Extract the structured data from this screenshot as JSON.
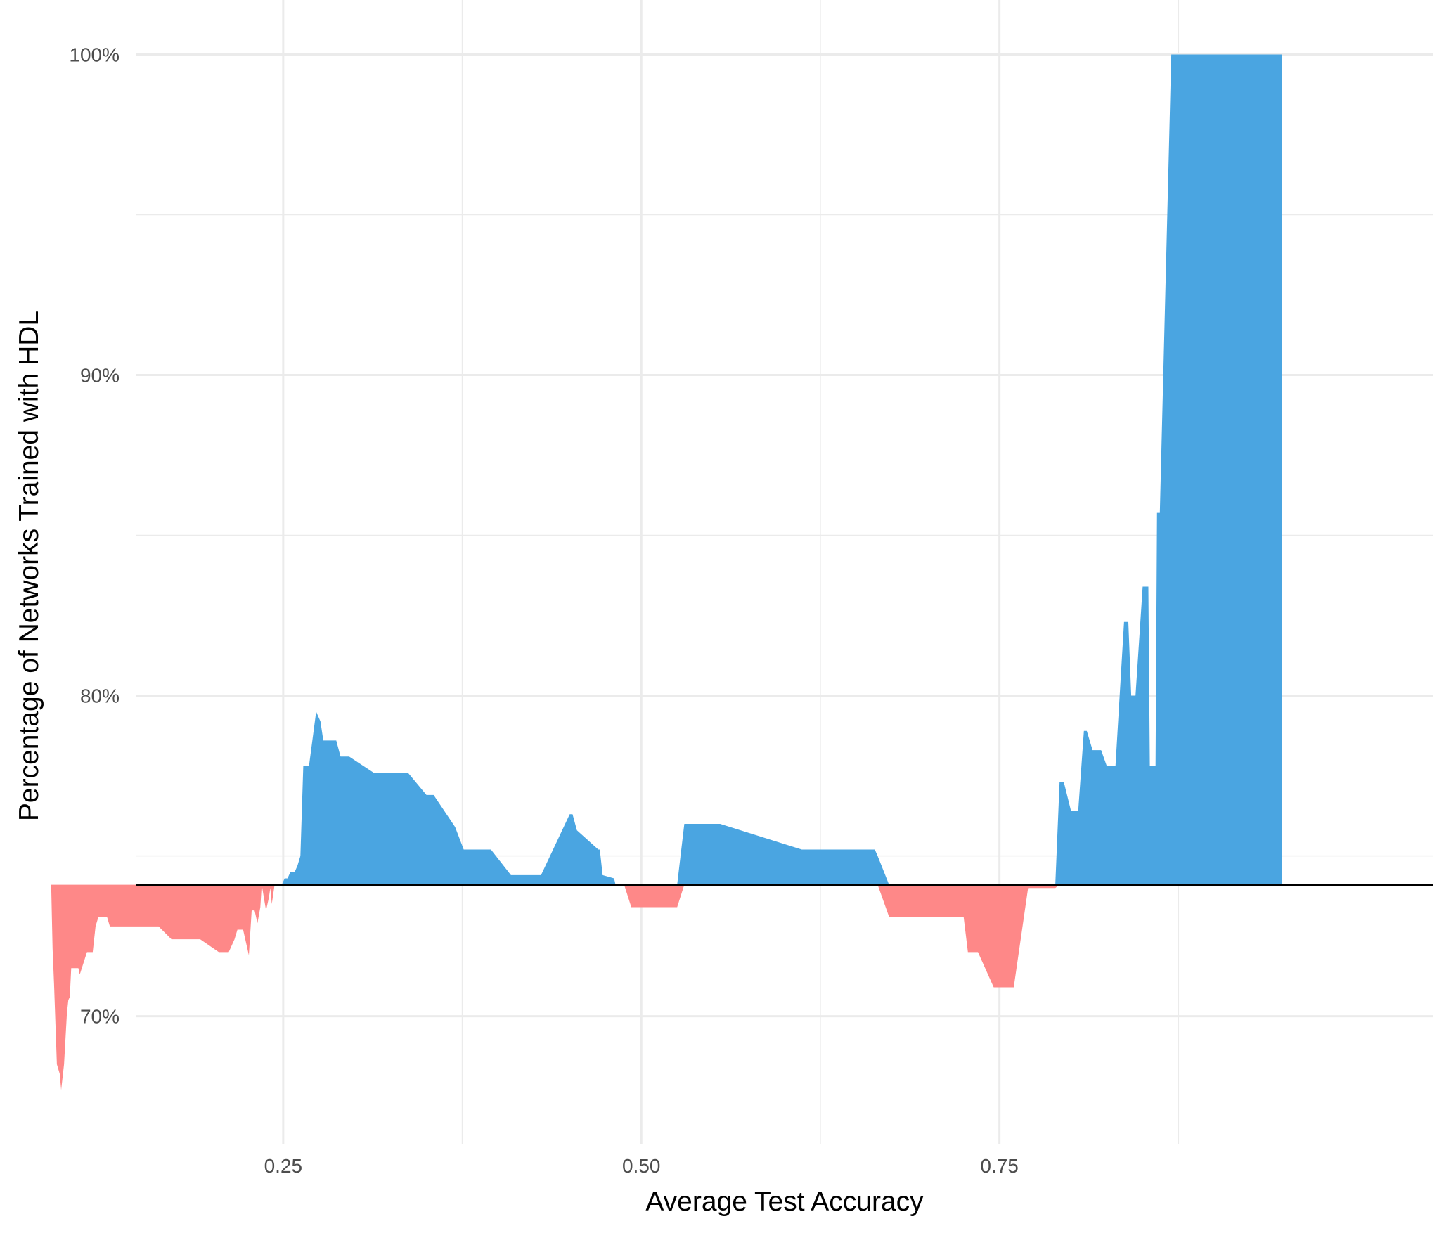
{
  "chart_data": {
    "type": "area",
    "xlabel": "Average Test Accuracy",
    "ylabel": "Percentage of  Networks Trained with HDL",
    "x_ticks": [
      {
        "value": 0.25,
        "label": "0.25"
      },
      {
        "value": 0.5,
        "label": "0.50"
      },
      {
        "value": 0.75,
        "label": "0.75"
      }
    ],
    "y_ticks": [
      {
        "value": 70,
        "label": "70%"
      },
      {
        "value": 80,
        "label": "80%"
      },
      {
        "value": 90,
        "label": "90%"
      },
      {
        "value": 100,
        "label": "100%"
      }
    ],
    "xlim": [
      0.147,
      1.053
    ],
    "ylim": [
      66.0,
      101.7
    ],
    "grid": true,
    "baseline": 74.1,
    "colors": {
      "above": "#4aa5e1",
      "below": "#fe8888",
      "baseline": "#000000",
      "grid": "#ebebeb"
    },
    "x": [
      0.088,
      0.089,
      0.09,
      0.092,
      0.094,
      0.095,
      0.097,
      0.099,
      0.1,
      0.101,
      0.102,
      0.106,
      0.107,
      0.108,
      0.113,
      0.117,
      0.119,
      0.121,
      0.123,
      0.127,
      0.129,
      0.137,
      0.15,
      0.163,
      0.172,
      0.183,
      0.186,
      0.192,
      0.205,
      0.212,
      0.216,
      0.218,
      0.222,
      0.226,
      0.228,
      0.23,
      0.232,
      0.234,
      0.235,
      0.238,
      0.24,
      0.241,
      0.242,
      0.244,
      0.247,
      0.249,
      0.251,
      0.253,
      0.255,
      0.258,
      0.26,
      0.262,
      0.264,
      0.268,
      0.273,
      0.276,
      0.278,
      0.287,
      0.29,
      0.296,
      0.313,
      0.321,
      0.337,
      0.35,
      0.355,
      0.37,
      0.376,
      0.395,
      0.409,
      0.43,
      0.45,
      0.452,
      0.455,
      0.47,
      0.471,
      0.473,
      0.481,
      0.482,
      0.486,
      0.488,
      0.493,
      0.5,
      0.525,
      0.53,
      0.552,
      0.555,
      0.612,
      0.615,
      0.663,
      0.665,
      0.673,
      0.701,
      0.724,
      0.725,
      0.728,
      0.735,
      0.746,
      0.757,
      0.76,
      0.77,
      0.774,
      0.779,
      0.782,
      0.785,
      0.789,
      0.792,
      0.795,
      0.8,
      0.805,
      0.809,
      0.811,
      0.815,
      0.821,
      0.825,
      0.831,
      0.837,
      0.84,
      0.842,
      0.845,
      0.85,
      0.854,
      0.855,
      0.859,
      0.86,
      0.862,
      0.87,
      0.92,
      0.946,
      0.947,
      0.947,
      0.947
    ],
    "y": [
      74.1,
      72.1,
      71.0,
      68.5,
      68.2,
      67.7,
      68.5,
      70.1,
      70.5,
      70.6,
      71.5,
      71.5,
      71.5,
      71.3,
      72.0,
      72.0,
      72.8,
      73.1,
      73.1,
      73.1,
      72.8,
      72.8,
      72.8,
      72.8,
      72.4,
      72.4,
      72.4,
      72.4,
      72.0,
      72.0,
      72.4,
      72.7,
      72.7,
      71.9,
      73.3,
      73.3,
      72.9,
      73.4,
      74.1,
      73.3,
      73.7,
      74.0,
      73.5,
      74.1,
      74.1,
      74.1,
      74.3,
      74.3,
      74.5,
      74.5,
      74.7,
      75.0,
      77.8,
      77.8,
      79.5,
      79.2,
      78.6,
      78.6,
      78.1,
      78.1,
      77.6,
      77.6,
      77.6,
      76.9,
      76.9,
      75.9,
      75.2,
      75.2,
      74.4,
      74.4,
      76.3,
      76.3,
      75.8,
      75.2,
      75.2,
      74.4,
      74.3,
      74.1,
      74.1,
      74.1,
      73.4,
      73.4,
      73.4,
      76.0,
      76.0,
      76.0,
      75.2,
      75.2,
      75.2,
      75.0,
      73.1,
      73.1,
      73.1,
      73.1,
      72.0,
      72.0,
      70.9,
      70.9,
      70.9,
      74.0,
      74.0,
      74.0,
      74.0,
      74.0,
      74.0,
      77.3,
      77.3,
      76.4,
      76.4,
      78.9,
      78.9,
      78.3,
      78.3,
      77.8,
      77.8,
      82.3,
      82.3,
      80.0,
      80.0,
      83.4,
      83.4,
      77.8,
      77.8,
      85.7,
      85.7,
      100.0,
      100.0,
      100.0,
      100.0,
      100.0,
      100.0
    ]
  }
}
